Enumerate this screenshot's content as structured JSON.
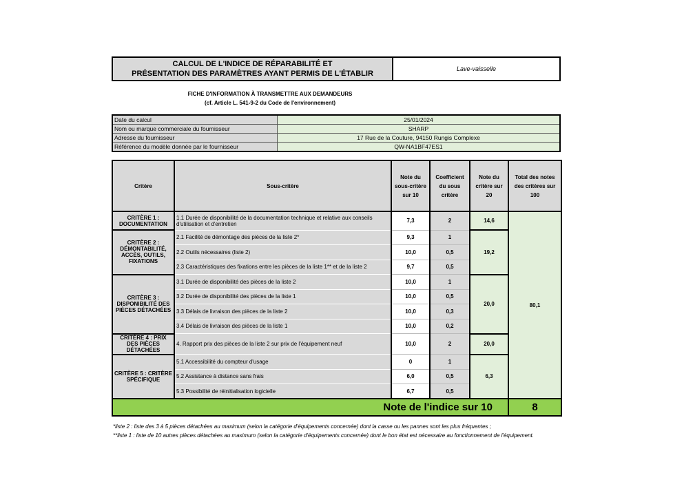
{
  "header": {
    "title_line1": "CALCUL DE L'INDICE DE RÉPARABILITÉ ET",
    "title_line2": "PRÉSENTATION DES PARAMÈTRES AYANT PERMIS DE L'ÉTABLIR",
    "product": "Lave-vaisselle"
  },
  "fiche": {
    "line1": "FICHE D'INFORMATION À TRANSMETTRE AUX DEMANDEURS",
    "line2": "(cf. Article L. 541-9-2 du Code de l'environnement)"
  },
  "info": [
    {
      "label": "Date du calcul",
      "value": "25/01/2024"
    },
    {
      "label": "Nom ou marque commerciale du fournisseur",
      "value": "SHARP"
    },
    {
      "label": "Adresse du fournisseur",
      "value": "17 Rue de la Couture, 94150 Rungis Complexe"
    },
    {
      "label": "Référence du modèle donnée par le fournisseur",
      "value": "QW-NA1BF47ES1"
    }
  ],
  "table": {
    "headers": [
      "Critère",
      "Sous-critère",
      "Note du sous-critère sur 10",
      "Coefficient du sous critère",
      "Note du critère sur 20",
      "Total des notes des critères sur 100"
    ],
    "criteria": [
      {
        "name": "CRITÈRE 1 : DOCUMENTATION",
        "score20": "14,6",
        "rows": [
          {
            "label": "1.1 Durée de disponibilité de la documentation technique et relative aux conseils d'utilisation et d'entretien",
            "note": "7,3",
            "coef": "2"
          }
        ]
      },
      {
        "name": "CRITÈRE 2 : DÉMONTABILITÉ, ACCÈS, OUTILS, FIXATIONS",
        "score20": "19,2",
        "rows": [
          {
            "label": "2.1 Facilité de démontage des pièces de la liste 2*",
            "note": "9,3",
            "coef": "1"
          },
          {
            "label": "2.2 Outils nécessaires (liste 2)",
            "note": "10,0",
            "coef": "0,5"
          },
          {
            "label": "2.3 Caractéristiques des fixations entre les pièces de la liste 1** et de la liste 2",
            "note": "9,7",
            "coef": "0,5"
          }
        ]
      },
      {
        "name": "CRITÈRE 3 : DISPONIBILITÉ DES PIÈCES DÉTACHÉES",
        "score20": "20,0",
        "rows": [
          {
            "label": "3.1 Durée de disponibilité des pièces de la liste 2",
            "note": "10,0",
            "coef": "1"
          },
          {
            "label": "3.2 Durée de disponibilité des pièces de la liste 1",
            "note": "10,0",
            "coef": "0,5"
          },
          {
            "label": "3.3 Délais de livraison des pièces de la liste 2",
            "note": "10,0",
            "coef": "0,3"
          },
          {
            "label": "3.4 Délais de livraison des pièces de la liste 1",
            "note": "10,0",
            "coef": "0,2"
          }
        ]
      },
      {
        "name": "CRITÈRE 4 : PRIX DES PIÈCES DÉTACHÉES",
        "score20": "20,0",
        "rows": [
          {
            "label": "4. Rapport prix des pièces de la liste 2 sur prix de l'équipement neuf",
            "note": "10,0",
            "coef": "2"
          }
        ]
      },
      {
        "name": "CRITÈRE 5 : CRITÈRE SPÉCIFIQUE",
        "score20": "6,3",
        "rows": [
          {
            "label": "5.1 Accessibilité du compteur d'usage",
            "note": "0",
            "coef": "1"
          },
          {
            "label": "5.2 Assistance à distance sans frais",
            "note": "6,0",
            "coef": "0,5"
          },
          {
            "label": "5.3 Possibilité de réinitialisation logicielle",
            "note": "6,7",
            "coef": "0,5"
          }
        ]
      }
    ],
    "total100": "80,1",
    "final_label": "Note de l'indice sur 10",
    "final_value": "8"
  },
  "notes": {
    "note1": "*liste 2 : liste des 3 à 5 pièces détachées au maximum (selon la catégorie d'équipements concernée) dont la casse ou les pannes sont les plus fréquentes ;",
    "note2": "**liste 1 : liste de 10 autres pièces détachées au maximum (selon la catégorie d'équipements concernée) dont le bon état est nécessaire au fonctionnement de l'équipement."
  },
  "colors": {
    "grey": "#d9d9d9",
    "light_green": "#e2efda",
    "green": "#92d050"
  }
}
